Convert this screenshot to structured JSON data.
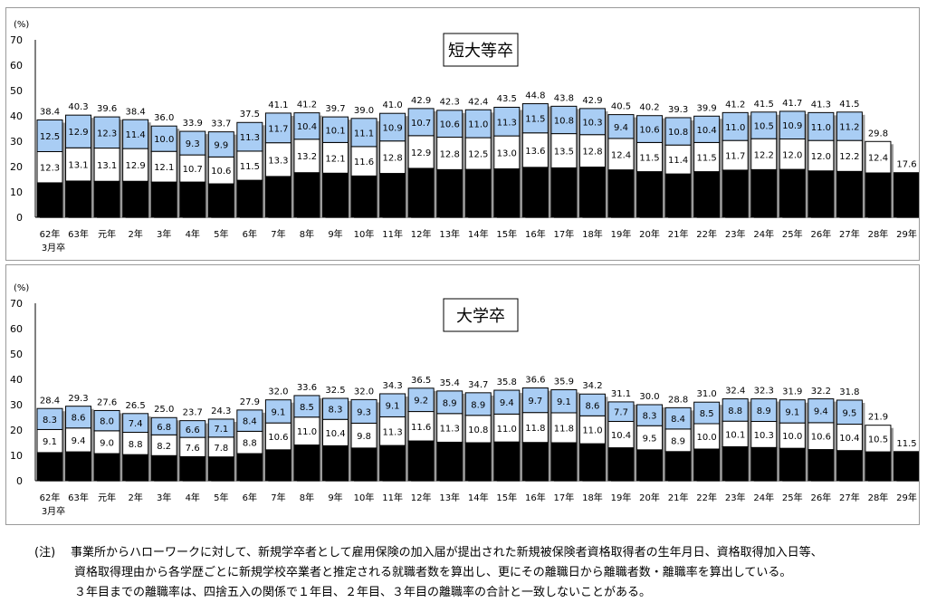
{
  "chart_data": [
    {
      "type": "bar",
      "stacked": true,
      "title": "短大等卒",
      "ylabel": "(%)",
      "ylim": [
        0,
        70
      ],
      "yticks": [
        0,
        10,
        20,
        30,
        40,
        50,
        60,
        70
      ],
      "grid": false,
      "categories": [
        "62年",
        "63年",
        "元年",
        "2年",
        "3年",
        "4年",
        "5年",
        "6年",
        "7年",
        "8年",
        "9年",
        "10年",
        "11年",
        "12年",
        "13年",
        "14年",
        "15年",
        "16年",
        "17年",
        "18年",
        "19年",
        "20年",
        "21年",
        "22年",
        "23年",
        "24年",
        "25年",
        "26年",
        "27年",
        "28年",
        "29年"
      ],
      "first_category_sub": "3月卒",
      "series": [
        {
          "values": [
            13.6,
            14.3,
            14.2,
            14.2,
            13.9,
            13.9,
            13.2,
            14.6,
            16.1,
            17.6,
            17.4,
            16.3,
            17.3,
            19.3,
            18.8,
            18.9,
            19.1,
            19.7,
            19.5,
            19.8,
            18.7,
            18.0,
            17.1,
            18.0,
            18.6,
            18.8,
            18.9,
            18.3,
            18.1,
            17.5,
            17.6
          ]
        },
        {
          "values": [
            12.3,
            13.1,
            13.1,
            12.9,
            12.1,
            10.7,
            10.6,
            11.5,
            13.3,
            13.2,
            12.1,
            11.6,
            12.8,
            12.9,
            12.8,
            12.5,
            13.0,
            13.6,
            13.5,
            12.8,
            12.4,
            11.5,
            11.4,
            11.5,
            11.7,
            12.2,
            12.0,
            12.0,
            12.2,
            12.4,
            null
          ]
        },
        {
          "values": [
            12.5,
            12.9,
            12.3,
            11.4,
            10.0,
            9.3,
            9.9,
            11.3,
            11.7,
            10.4,
            10.1,
            11.1,
            10.9,
            10.7,
            10.6,
            11.0,
            11.3,
            11.5,
            10.8,
            10.3,
            9.4,
            10.6,
            10.8,
            10.4,
            11.0,
            10.5,
            10.9,
            11.0,
            11.2,
            null,
            null
          ]
        }
      ],
      "totals": [
        38.4,
        40.3,
        39.6,
        38.4,
        36.0,
        33.9,
        33.7,
        37.5,
        41.1,
        41.2,
        39.7,
        39.0,
        41.0,
        42.9,
        42.3,
        42.4,
        43.5,
        44.8,
        43.8,
        42.9,
        40.5,
        40.2,
        39.3,
        39.9,
        41.2,
        41.5,
        41.7,
        41.3,
        41.5,
        29.8,
        17.6
      ],
      "colors": {
        "year1": "#000000",
        "year2": "#ffffff",
        "year3": "#a9cdf4",
        "outline": "#000000",
        "shadow": "#9a9a9a"
      }
    },
    {
      "type": "bar",
      "stacked": true,
      "title": "大学卒",
      "ylabel": "(%)",
      "ylim": [
        0,
        70
      ],
      "yticks": [
        0,
        10,
        20,
        30,
        40,
        50,
        60,
        70
      ],
      "grid": false,
      "categories": [
        "62年",
        "63年",
        "元年",
        "2年",
        "3年",
        "4年",
        "5年",
        "6年",
        "7年",
        "8年",
        "9年",
        "10年",
        "11年",
        "12年",
        "13年",
        "14年",
        "15年",
        "16年",
        "17年",
        "18年",
        "19年",
        "20年",
        "21年",
        "22年",
        "23年",
        "24年",
        "25年",
        "26年",
        "27年",
        "28年",
        "29年"
      ],
      "first_category_sub": "3月卒",
      "series": [
        {
          "values": [
            11.1,
            11.4,
            10.7,
            10.3,
            9.9,
            9.5,
            9.4,
            10.7,
            12.2,
            14.1,
            13.8,
            12.9,
            13.9,
            15.7,
            15.2,
            15.0,
            15.3,
            15.1,
            15.0,
            14.6,
            13.0,
            12.2,
            11.5,
            12.5,
            13.4,
            13.1,
            12.8,
            12.3,
            11.9,
            11.4,
            11.5
          ]
        },
        {
          "values": [
            9.1,
            9.4,
            9.0,
            8.8,
            8.2,
            7.6,
            7.8,
            8.8,
            10.6,
            11.0,
            10.4,
            9.8,
            11.3,
            11.6,
            11.3,
            10.8,
            11.0,
            11.8,
            11.8,
            11.0,
            10.4,
            9.5,
            8.9,
            10.0,
            10.1,
            10.3,
            10.0,
            10.6,
            10.4,
            10.5,
            null
          ]
        },
        {
          "values": [
            8.3,
            8.6,
            8.0,
            7.4,
            6.8,
            6.6,
            7.1,
            8.4,
            9.1,
            8.5,
            8.3,
            9.3,
            9.1,
            9.2,
            8.9,
            8.9,
            9.4,
            9.7,
            9.1,
            8.6,
            7.7,
            8.3,
            8.4,
            8.5,
            8.8,
            8.9,
            9.1,
            9.4,
            9.5,
            null,
            null
          ]
        }
      ],
      "totals": [
        28.4,
        29.3,
        27.6,
        26.5,
        25.0,
        23.7,
        24.3,
        27.9,
        32.0,
        33.6,
        32.5,
        32.0,
        34.3,
        36.5,
        35.4,
        34.7,
        35.8,
        36.6,
        35.9,
        34.2,
        31.1,
        30.0,
        28.8,
        31.0,
        32.4,
        32.3,
        31.9,
        32.2,
        31.8,
        21.9,
        11.5
      ],
      "colors": {
        "year1": "#000000",
        "year2": "#ffffff",
        "year3": "#a9cdf4",
        "outline": "#000000",
        "shadow": "#9a9a9a"
      }
    }
  ],
  "notes": {
    "mark": "(注)",
    "line1": "事業所からハローワークに対して、新規学卒者として雇用保険の加入届が提出された新規被保険者資格取得者の生年月日、資格取得加入日等、",
    "line2": "資格取得理由から各学歴ごとに新規学校卒業者と推定される就職者数を算出し、更にその離職日から離職者数・離職率を算出している。",
    "line3": "３年目までの離職率は、四捨五入の関係で１年目、２年目、３年目の離職率の合計と一致しないことがある。"
  }
}
